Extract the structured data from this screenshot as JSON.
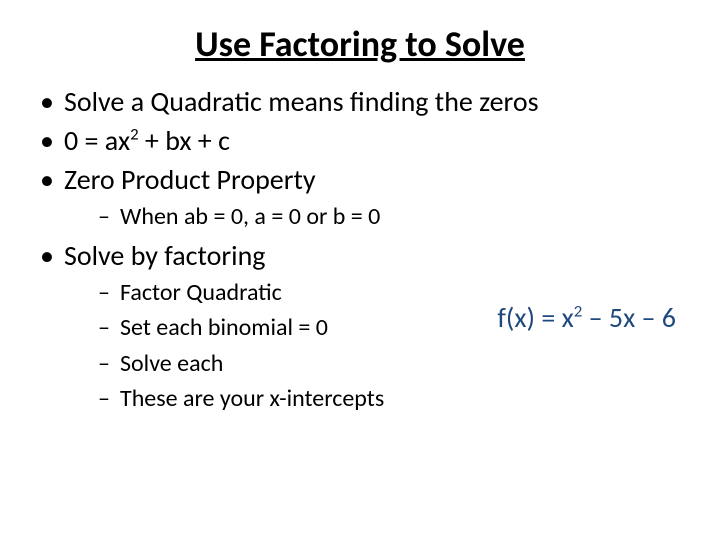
{
  "title": "Use Factoring to Solve",
  "bullets": {
    "b1": "Solve a Quadratic means finding the zeros",
    "b2_pre": "0 = ax",
    "b2_sup": "2",
    "b2_post": " + bx + c",
    "b3": "Zero Product Property",
    "b3_sub1": "When ab = 0, a = 0 or b = 0",
    "b4": "Solve by factoring",
    "b4_sub1": "Factor Quadratic",
    "b4_sub2": "Set each binomial = 0",
    "b4_sub3": "Solve each",
    "b4_sub4": "These are your x-intercepts"
  },
  "example": {
    "pre": "f(x) = x",
    "sup": "2",
    "post": " – 5x – 6",
    "color": "#1f497d"
  }
}
